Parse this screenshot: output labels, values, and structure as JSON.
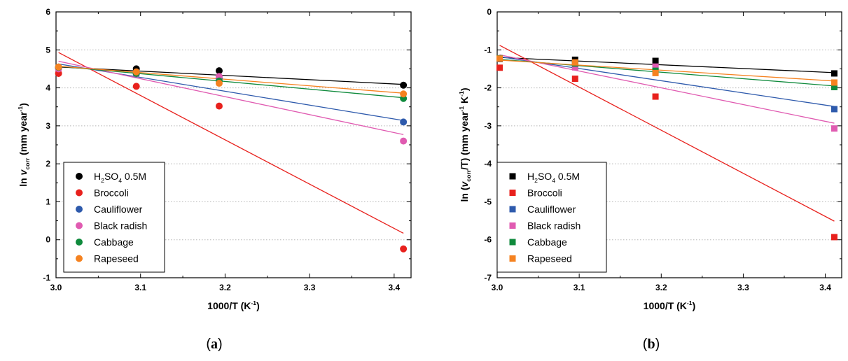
{
  "chart_data": [
    {
      "type": "scatter",
      "panel_label": "(a)",
      "xlabel": "1000/T (K-1)",
      "ylabel": "ln vcorr (mm year-1)",
      "xlim": [
        3.0,
        3.42
      ],
      "ylim": [
        -1,
        6
      ],
      "xticks": [
        "3.0",
        "3.1",
        "3.2",
        "3.3",
        "3.4"
      ],
      "yticks": [
        "-1",
        "0",
        "1",
        "2",
        "3",
        "4",
        "5",
        "6"
      ],
      "grid": "horizontal dotted",
      "legend_position": "bottom-left",
      "marker": "circle",
      "series": [
        {
          "name": "H2SO4 0.5M",
          "color": "#000000",
          "x": [
            3.003,
            3.095,
            3.193,
            3.411
          ],
          "y": [
            4.53,
            4.5,
            4.45,
            4.07
          ],
          "fit": {
            "x": [
              3.003,
              3.411
            ],
            "y": [
              4.55,
              4.09
            ]
          }
        },
        {
          "name": "Broccoli",
          "color": "#e8211d",
          "x": [
            3.003,
            3.095,
            3.193,
            3.411
          ],
          "y": [
            4.38,
            4.04,
            3.52,
            -0.24
          ],
          "fit": {
            "x": [
              3.003,
              3.411
            ],
            "y": [
              4.93,
              0.17
            ]
          }
        },
        {
          "name": "Cauliflower",
          "color": "#2e5aac",
          "x": [
            3.003,
            3.095,
            3.193,
            3.411
          ],
          "y": [
            4.55,
            4.36,
            4.25,
            3.1
          ],
          "fit": {
            "x": [
              3.003,
              3.411
            ],
            "y": [
              4.63,
              3.14
            ]
          }
        },
        {
          "name": "Black radish",
          "color": "#e05bb1",
          "x": [
            3.003,
            3.095,
            3.193,
            3.411
          ],
          "y": [
            4.5,
            4.37,
            4.3,
            2.6
          ],
          "fit": {
            "x": [
              3.003,
              3.411
            ],
            "y": [
              4.7,
              2.77
            ]
          }
        },
        {
          "name": "Cabbage",
          "color": "#0f8a3c",
          "x": [
            3.003,
            3.095,
            3.193,
            3.411
          ],
          "y": [
            4.54,
            4.38,
            4.18,
            3.72
          ],
          "fit": {
            "x": [
              3.003,
              3.411
            ],
            "y": [
              4.57,
              3.74
            ]
          }
        },
        {
          "name": "Rapeseed",
          "color": "#f58220",
          "x": [
            3.003,
            3.095,
            3.193,
            3.411
          ],
          "y": [
            4.55,
            4.42,
            4.12,
            3.84
          ],
          "fit": {
            "x": [
              3.003,
              3.411
            ],
            "y": [
              4.57,
              3.86
            ]
          }
        }
      ]
    },
    {
      "type": "scatter",
      "panel_label": "(b)",
      "xlabel": "1000/T (K-1)",
      "ylabel": "ln (vcorr/T) (mm year-1 K-1)",
      "xlim": [
        3.0,
        3.42
      ],
      "ylim": [
        -7,
        0
      ],
      "xticks": [
        "3.0",
        "3.1",
        "3.2",
        "3.3",
        "3.4"
      ],
      "yticks": [
        "-7",
        "-6",
        "-5",
        "-4",
        "-3",
        "-2",
        "-1",
        "0"
      ],
      "grid": "horizontal dotted",
      "legend_position": "bottom-left",
      "marker": "square",
      "series": [
        {
          "name": "H2SO4 0.5M",
          "color": "#000000",
          "x": [
            3.003,
            3.095,
            3.193,
            3.411
          ],
          "y": [
            -1.24,
            -1.26,
            -1.29,
            -1.62
          ],
          "fit": {
            "x": [
              3.003,
              3.411
            ],
            "y": [
              -1.2,
              -1.6
            ]
          }
        },
        {
          "name": "Broccoli",
          "color": "#e8211d",
          "x": [
            3.003,
            3.095,
            3.193,
            3.411
          ],
          "y": [
            -1.47,
            -1.76,
            -2.23,
            -5.93
          ],
          "fit": {
            "x": [
              3.003,
              3.411
            ],
            "y": [
              -0.88,
              -5.51
            ]
          }
        },
        {
          "name": "Cauliflower",
          "color": "#2e5aac",
          "x": [
            3.003,
            3.095,
            3.193,
            3.411
          ],
          "y": [
            -1.24,
            -1.42,
            -1.48,
            -2.56
          ],
          "fit": {
            "x": [
              3.003,
              3.411
            ],
            "y": [
              -1.18,
              -2.49
            ]
          }
        },
        {
          "name": "Black radish",
          "color": "#e05bb1",
          "x": [
            3.003,
            3.095,
            3.193,
            3.411
          ],
          "y": [
            -1.22,
            -1.46,
            -1.44,
            -3.07
          ],
          "fit": {
            "x": [
              3.003,
              3.411
            ],
            "y": [
              -1.13,
              -2.93
            ]
          }
        },
        {
          "name": "Cabbage",
          "color": "#0f8a3c",
          "x": [
            3.003,
            3.095,
            3.193,
            3.411
          ],
          "y": [
            -1.22,
            -1.36,
            -1.55,
            -1.98
          ],
          "fit": {
            "x": [
              3.003,
              3.411
            ],
            "y": [
              -1.25,
              -1.95
            ]
          }
        },
        {
          "name": "Rapeseed",
          "color": "#f58220",
          "x": [
            3.003,
            3.095,
            3.193,
            3.411
          ],
          "y": [
            -1.23,
            -1.33,
            -1.61,
            -1.86
          ],
          "fit": {
            "x": [
              3.003,
              3.411
            ],
            "y": [
              -1.27,
              -1.82
            ]
          }
        }
      ]
    }
  ]
}
